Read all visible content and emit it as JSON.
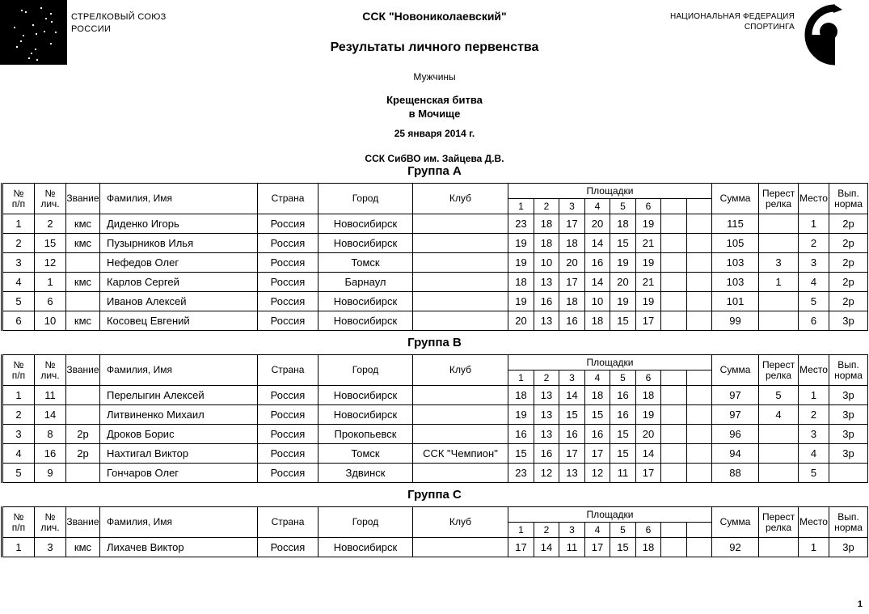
{
  "page": {
    "background": "#ffffff",
    "text_color": "#000000",
    "page_number": "1"
  },
  "header": {
    "left_org": {
      "line1": "СТРЕЛКОВЫЙ СОЮЗ",
      "line2": "РОССИИ"
    },
    "club_title": "ССК \"Новониколаевский\"",
    "doc_title": "Результаты личного первенства",
    "category": "Мужчины",
    "event_title_line1": "Крещенская битва",
    "event_title_line2": "в Мочище",
    "event_date": "25 января 2014 г.",
    "venue": "ССК СибВО им. Зайцева Д.В.",
    "right_org": {
      "line1": "НАЦИОНАЛЬНАЯ ФЕДЕРАЦИЯ",
      "line2": "СПОРТИНГА"
    }
  },
  "table_headers": {
    "num": [
      "№",
      "п/п"
    ],
    "num_personal": [
      "№",
      "лич."
    ],
    "rank": "Звание",
    "name": "Фамилия, Имя",
    "country": "Страна",
    "city": "Город",
    "club": "Клуб",
    "stations": "Площадки",
    "station_numbers": [
      "1",
      "2",
      "3",
      "4",
      "5",
      "6",
      "",
      ""
    ],
    "sum": "Сумма",
    "shootoff": [
      "Перест",
      "релка"
    ],
    "place": "Место",
    "norm": [
      "Вып.",
      "норма"
    ]
  },
  "groups": [
    {
      "title": "Группа А",
      "rows": [
        {
          "n": "1",
          "id": "2",
          "rank": "кмс",
          "name": "Диденко Игорь",
          "country": "Россия",
          "city": "Новосибирск",
          "club": "",
          "scores": [
            "23",
            "18",
            "17",
            "20",
            "18",
            "19",
            "",
            ""
          ],
          "sum": "115",
          "shootoff": "",
          "place": "1",
          "norm": "2р"
        },
        {
          "n": "2",
          "id": "15",
          "rank": "кмс",
          "name": "Пузырников Илья",
          "country": "Россия",
          "city": "Новосибирск",
          "club": "",
          "scores": [
            "19",
            "18",
            "18",
            "14",
            "15",
            "21",
            "",
            ""
          ],
          "sum": "105",
          "shootoff": "",
          "place": "2",
          "norm": "2р"
        },
        {
          "n": "3",
          "id": "12",
          "rank": "",
          "name": "Нефедов Олег",
          "country": "Россия",
          "city": "Томск",
          "club": "",
          "scores": [
            "19",
            "10",
            "20",
            "16",
            "19",
            "19",
            "",
            ""
          ],
          "sum": "103",
          "shootoff": "3",
          "place": "3",
          "norm": "2р"
        },
        {
          "n": "4",
          "id": "1",
          "rank": "кмс",
          "name": "Карлов Сергей",
          "country": "Россия",
          "city": "Барнаул",
          "club": "",
          "scores": [
            "18",
            "13",
            "17",
            "14",
            "20",
            "21",
            "",
            ""
          ],
          "sum": "103",
          "shootoff": "1",
          "place": "4",
          "norm": "2р"
        },
        {
          "n": "5",
          "id": "6",
          "rank": "",
          "name": "Иванов Алексей",
          "country": "Россия",
          "city": "Новосибирск",
          "club": "",
          "scores": [
            "19",
            "16",
            "18",
            "10",
            "19",
            "19",
            "",
            ""
          ],
          "sum": "101",
          "shootoff": "",
          "place": "5",
          "norm": "2р"
        },
        {
          "n": "6",
          "id": "10",
          "rank": "кмс",
          "name": "Косовец Евгений",
          "country": "Россия",
          "city": "Новосибирск",
          "club": "",
          "scores": [
            "20",
            "13",
            "16",
            "18",
            "15",
            "17",
            "",
            ""
          ],
          "sum": "99",
          "shootoff": "",
          "place": "6",
          "norm": "3р"
        }
      ]
    },
    {
      "title": "Группа В",
      "rows": [
        {
          "n": "1",
          "id": "11",
          "rank": "",
          "name": "Перелыгин Алексей",
          "country": "Россия",
          "city": "Новосибирск",
          "club": "",
          "scores": [
            "18",
            "13",
            "14",
            "18",
            "16",
            "18",
            "",
            ""
          ],
          "sum": "97",
          "shootoff": "5",
          "place": "1",
          "norm": "3р"
        },
        {
          "n": "2",
          "id": "14",
          "rank": "",
          "name": "Литвиненко Михаил",
          "country": "Россия",
          "city": "Новосибирск",
          "club": "",
          "scores": [
            "19",
            "13",
            "15",
            "15",
            "16",
            "19",
            "",
            ""
          ],
          "sum": "97",
          "shootoff": "4",
          "place": "2",
          "norm": "3р"
        },
        {
          "n": "3",
          "id": "8",
          "rank": "2р",
          "name": "Дроков Борис",
          "country": "Россия",
          "city": "Прокопьевск",
          "club": "",
          "scores": [
            "16",
            "13",
            "16",
            "16",
            "15",
            "20",
            "",
            ""
          ],
          "sum": "96",
          "shootoff": "",
          "place": "3",
          "norm": "3р"
        },
        {
          "n": "4",
          "id": "16",
          "rank": "2р",
          "name": "Нахтигал Виктор",
          "country": "Россия",
          "city": "Томск",
          "club": "ССК \"Чемпион\"",
          "scores": [
            "15",
            "16",
            "17",
            "17",
            "15",
            "14",
            "",
            ""
          ],
          "sum": "94",
          "shootoff": "",
          "place": "4",
          "norm": "3р"
        },
        {
          "n": "5",
          "id": "9",
          "rank": "",
          "name": "Гончаров Олег",
          "country": "Россия",
          "city": "Здвинск",
          "club": "",
          "scores": [
            "23",
            "12",
            "13",
            "12",
            "11",
            "17",
            "",
            ""
          ],
          "sum": "88",
          "shootoff": "",
          "place": "5",
          "norm": ""
        }
      ]
    },
    {
      "title": "Группа С",
      "rows": [
        {
          "n": "1",
          "id": "3",
          "rank": "кмс",
          "name": "Лихачев Виктор",
          "country": "Россия",
          "city": "Новосибирск",
          "club": "",
          "scores": [
            "17",
            "14",
            "11",
            "17",
            "15",
            "18",
            "",
            ""
          ],
          "sum": "92",
          "shootoff": "",
          "place": "1",
          "norm": "3р"
        }
      ]
    }
  ]
}
